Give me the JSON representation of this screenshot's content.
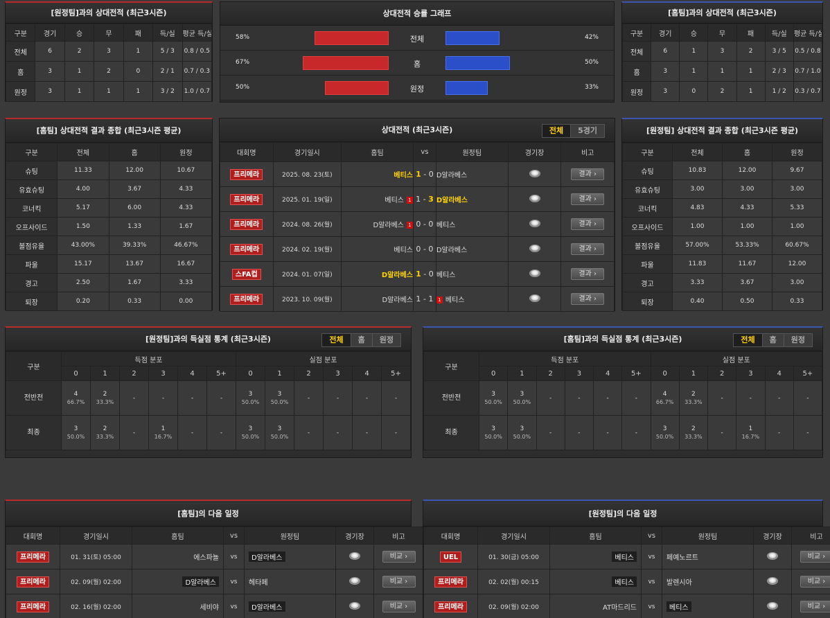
{
  "h2h_away": {
    "title": "[원정팀]과의 상대전적 (최근3시즌)",
    "headers": [
      "구분",
      "경기",
      "승",
      "무",
      "패",
      "득/실",
      "평균 득/실"
    ],
    "rows": [
      [
        "전체",
        "6",
        "2",
        "3",
        "1",
        "5 / 3",
        "0.8 / 0.5"
      ],
      [
        "홈",
        "3",
        "1",
        "2",
        "0",
        "2 / 1",
        "0.7 / 0.3"
      ],
      [
        "원정",
        "3",
        "1",
        "1",
        "1",
        "3 / 2",
        "1.0 / 0.7"
      ]
    ]
  },
  "graph": {
    "title": "상대전적 승률 그래프",
    "rows": [
      {
        "label": "전체",
        "left": "58%",
        "right": "42%",
        "left_val": 58,
        "right_val": 42
      },
      {
        "label": "홈",
        "left": "67%",
        "right": "50%",
        "left_val": 67,
        "right_val": 50
      },
      {
        "label": "원정",
        "left": "50%",
        "right": "33%",
        "left_val": 50,
        "right_val": 33
      }
    ],
    "home_color": "#c8282a",
    "away_color": "#2a4fc8"
  },
  "h2h_home": {
    "title": "[홈팀]과의 상대전적 (최근3시즌)",
    "headers": [
      "구분",
      "경기",
      "승",
      "무",
      "패",
      "득/실",
      "평균 득/실"
    ],
    "rows": [
      [
        "전체",
        "6",
        "1",
        "3",
        "2",
        "3 / 5",
        "0.5 / 0.8"
      ],
      [
        "홈",
        "3",
        "1",
        "1",
        "1",
        "2 / 3",
        "0.7 / 1.0"
      ],
      [
        "원정",
        "3",
        "0",
        "2",
        "1",
        "1 / 2",
        "0.3 / 0.7"
      ]
    ]
  },
  "home_summary": {
    "title": "[홈팀] 상대전적 결과 종합 (최근3시즌 평균)",
    "headers": [
      "구분",
      "전체",
      "홈",
      "원정"
    ],
    "rows": [
      [
        "슈팅",
        "11.33",
        "12.00",
        "10.67"
      ],
      [
        "유효슈팅",
        "4.00",
        "3.67",
        "4.33"
      ],
      [
        "코너킥",
        "5.17",
        "6.00",
        "4.33"
      ],
      [
        "오프사이드",
        "1.50",
        "1.33",
        "1.67"
      ],
      [
        "볼점유율",
        "43.00%",
        "39.33%",
        "46.67%"
      ],
      [
        "파울",
        "15.17",
        "13.67",
        "16.67"
      ],
      [
        "경고",
        "2.50",
        "1.67",
        "3.33"
      ],
      [
        "퇴장",
        "0.20",
        "0.33",
        "0.00"
      ]
    ]
  },
  "recent": {
    "title": "상대전적 (최근3시즌)",
    "tabs": [
      "전체",
      "5경기"
    ],
    "headers": [
      "대회명",
      "경기일시",
      "홈팀",
      "vs",
      "원정팀",
      "경기장",
      "비고"
    ],
    "btn": "결과",
    "rows": [
      {
        "league": "프리메라",
        "date": "2025. 08. 23(토)",
        "home": "베티스",
        "hs": "1",
        "as": "0",
        "away": "D알라베스",
        "win": "home",
        "hrc": "",
        "arc": ""
      },
      {
        "league": "프리메라",
        "date": "2025. 01. 19(일)",
        "home": "베티스",
        "hs": "1",
        "as": "3",
        "away": "D알라베스",
        "win": "away",
        "hrc": "1",
        "arc": ""
      },
      {
        "league": "프리메라",
        "date": "2024. 08. 26(월)",
        "home": "D알라베스",
        "hs": "0",
        "as": "0",
        "away": "베티스",
        "win": "",
        "hrc": "1",
        "arc": ""
      },
      {
        "league": "프리메라",
        "date": "2024. 02. 19(월)",
        "home": "베티스",
        "hs": "0",
        "as": "0",
        "away": "D알라베스",
        "win": "",
        "hrc": "",
        "arc": ""
      },
      {
        "league": "스FA컵",
        "date": "2024. 01. 07(일)",
        "home": "D알라베스",
        "hs": "1",
        "as": "0",
        "away": "베티스",
        "win": "home",
        "hrc": "",
        "arc": ""
      },
      {
        "league": "프리메라",
        "date": "2023. 10. 09(월)",
        "home": "D알라베스",
        "hs": "1",
        "as": "1",
        "away": "베티스",
        "win": "",
        "hrc": "",
        "arc": "1"
      }
    ]
  },
  "away_summary": {
    "title": "[원정팀] 상대전적 결과 종합 (최근3시즌 평균)",
    "headers": [
      "구분",
      "전체",
      "홈",
      "원정"
    ],
    "rows": [
      [
        "슈팅",
        "10.83",
        "12.00",
        "9.67"
      ],
      [
        "유효슈팅",
        "3.00",
        "3.00",
        "3.00"
      ],
      [
        "코너킥",
        "4.83",
        "4.33",
        "5.33"
      ],
      [
        "오프사이드",
        "1.00",
        "1.00",
        "1.00"
      ],
      [
        "볼점유율",
        "57.00%",
        "53.33%",
        "60.67%"
      ],
      [
        "파울",
        "11.83",
        "11.67",
        "12.00"
      ],
      [
        "경고",
        "3.33",
        "3.67",
        "3.00"
      ],
      [
        "퇴장",
        "0.40",
        "0.50",
        "0.33"
      ]
    ]
  },
  "goal_away": {
    "title": "[원정팀]과의 득실점 통계 (최근3시즌)",
    "tabs": [
      "전체",
      "홈",
      "원정"
    ],
    "col_label": "구분",
    "scored": "득점 분포",
    "conceded": "실점 분포",
    "nums": [
      "0",
      "1",
      "2",
      "3",
      "4",
      "5+"
    ],
    "rows": [
      {
        "label": "전반전",
        "cells": [
          [
            "4",
            "66.7%"
          ],
          [
            "2",
            "33.3%"
          ],
          [
            "-",
            ""
          ],
          [
            "-",
            ""
          ],
          [
            "-",
            ""
          ],
          [
            "-",
            ""
          ],
          [
            "3",
            "50.0%"
          ],
          [
            "3",
            "50.0%"
          ],
          [
            "-",
            ""
          ],
          [
            "-",
            ""
          ],
          [
            "-",
            ""
          ],
          [
            "-",
            ""
          ]
        ]
      },
      {
        "label": "최종",
        "cells": [
          [
            "3",
            "50.0%"
          ],
          [
            "2",
            "33.3%"
          ],
          [
            "-",
            ""
          ],
          [
            "1",
            "16.7%"
          ],
          [
            "-",
            ""
          ],
          [
            "-",
            ""
          ],
          [
            "3",
            "50.0%"
          ],
          [
            "3",
            "50.0%"
          ],
          [
            "-",
            ""
          ],
          [
            "-",
            ""
          ],
          [
            "-",
            ""
          ],
          [
            "-",
            ""
          ]
        ]
      }
    ]
  },
  "goal_home": {
    "title": "[홈팀]과의 득실점 통계 (최근3시즌)",
    "tabs": [
      "전체",
      "홈",
      "원정"
    ],
    "col_label": "구분",
    "scored": "득점 분포",
    "conceded": "실점 분포",
    "nums": [
      "0",
      "1",
      "2",
      "3",
      "4",
      "5+"
    ],
    "rows": [
      {
        "label": "전반전",
        "cells": [
          [
            "3",
            "50.0%"
          ],
          [
            "3",
            "50.0%"
          ],
          [
            "-",
            ""
          ],
          [
            "-",
            ""
          ],
          [
            "-",
            ""
          ],
          [
            "-",
            ""
          ],
          [
            "4",
            "66.7%"
          ],
          [
            "2",
            "33.3%"
          ],
          [
            "-",
            ""
          ],
          [
            "-",
            ""
          ],
          [
            "-",
            ""
          ],
          [
            "-",
            ""
          ]
        ]
      },
      {
        "label": "최종",
        "cells": [
          [
            "3",
            "50.0%"
          ],
          [
            "3",
            "50.0%"
          ],
          [
            "-",
            ""
          ],
          [
            "-",
            ""
          ],
          [
            "-",
            ""
          ],
          [
            "-",
            ""
          ],
          [
            "3",
            "50.0%"
          ],
          [
            "2",
            "33.3%"
          ],
          [
            "-",
            ""
          ],
          [
            "1",
            "16.7%"
          ],
          [
            "-",
            ""
          ],
          [
            "-",
            ""
          ]
        ]
      }
    ]
  },
  "next_home": {
    "title": "[홈팀]의 다음 일정",
    "headers": [
      "대회명",
      "경기일시",
      "홈팀",
      "vs",
      "원정팀",
      "경기장",
      "비고"
    ],
    "btn": "비교",
    "rows": [
      {
        "league": "프리메라",
        "date": "01. 31(토) 05:00",
        "home": "에스파뇰",
        "away": "D알라베스",
        "box": "away"
      },
      {
        "league": "프리메라",
        "date": "02. 09(월) 02:00",
        "home": "D알라베스",
        "away": "헤타페",
        "box": "home"
      },
      {
        "league": "프리메라",
        "date": "02. 16(월) 02:00",
        "home": "세비야",
        "away": "D알라베스",
        "box": "away"
      }
    ]
  },
  "next_away": {
    "title": "[원정팀]의 다음 일정",
    "headers": [
      "대회명",
      "경기일시",
      "홈팀",
      "vs",
      "원정팀",
      "경기장",
      "비고"
    ],
    "btn": "비교",
    "rows": [
      {
        "league": "UEL",
        "date": "01. 30(금) 05:00",
        "home": "베티스",
        "away": "페예노르트",
        "box": "home"
      },
      {
        "league": "프리메라",
        "date": "02. 02(월) 00:15",
        "home": "베티스",
        "away": "발렌시아",
        "box": "home"
      },
      {
        "league": "프리메라",
        "date": "02. 09(월) 02:00",
        "home": "AT마드리드",
        "away": "베티스",
        "box": "away"
      }
    ]
  }
}
